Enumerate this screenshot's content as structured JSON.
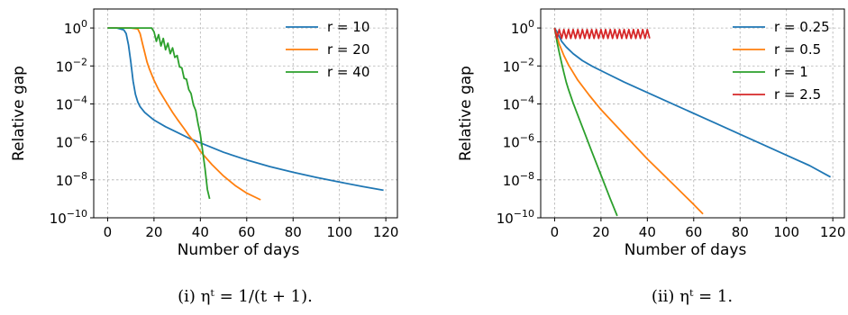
{
  "chart_data": [
    {
      "type": "line",
      "caption": "(i) ηᵗ = 1/(t + 1).",
      "xlabel": "Number of days",
      "ylabel": "Relative gap",
      "yscale": "log",
      "xlim": [
        -6,
        125
      ],
      "ylim_log10": [
        -10,
        1
      ],
      "xticks": [
        0,
        20,
        40,
        60,
        80,
        100,
        120
      ],
      "yticks_log10": [
        0,
        -2,
        -4,
        -6,
        -8,
        -10
      ],
      "xtick_labels": [
        "0",
        "20",
        "40",
        "60",
        "80",
        "100",
        "120"
      ],
      "ytick_bases": [
        "10",
        "10",
        "10",
        "10",
        "10",
        "10"
      ],
      "ytick_exponents": [
        "0",
        "−2",
        "−4",
        "−6",
        "−8",
        "−10"
      ],
      "grid": true,
      "legend_position": "top-right",
      "series": [
        {
          "name": "r = 10",
          "color": "#1f77b4",
          "x": [
            0,
            4,
            7,
            8,
            9,
            10,
            11,
            12,
            13,
            14,
            16,
            18,
            20,
            25,
            30,
            35,
            40,
            50,
            60,
            70,
            80,
            90,
            100,
            110,
            119
          ],
          "y_log10": [
            0,
            0,
            -0.1,
            -0.3,
            -0.9,
            -1.8,
            -2.8,
            -3.5,
            -3.9,
            -4.15,
            -4.45,
            -4.65,
            -4.85,
            -5.2,
            -5.5,
            -5.8,
            -6.05,
            -6.55,
            -6.95,
            -7.3,
            -7.6,
            -7.87,
            -8.12,
            -8.35,
            -8.55
          ]
        },
        {
          "name": "r = 20",
          "color": "#ff7f0e",
          "x": [
            0,
            10,
            13,
            14,
            15,
            16,
            17,
            18,
            20,
            22,
            25,
            28,
            30,
            33,
            35,
            38,
            40,
            45,
            50,
            55,
            60,
            66
          ],
          "y_log10": [
            0,
            0,
            -0.05,
            -0.3,
            -0.8,
            -1.3,
            -1.8,
            -2.15,
            -2.75,
            -3.25,
            -3.85,
            -4.45,
            -4.8,
            -5.3,
            -5.65,
            -6.1,
            -6.5,
            -7.2,
            -7.8,
            -8.3,
            -8.7,
            -9.05
          ]
        },
        {
          "name": "r = 40",
          "color": "#2ca02c",
          "x": [
            0,
            19,
            20,
            21,
            22,
            23,
            24,
            25,
            26,
            27,
            28,
            29,
            30,
            31,
            32,
            33,
            34,
            35,
            36,
            37,
            38,
            39,
            40,
            41,
            42,
            43,
            44
          ],
          "y_log10": [
            0,
            0,
            -0.2,
            -0.7,
            -0.35,
            -0.95,
            -0.55,
            -1.15,
            -0.8,
            -1.35,
            -1.05,
            -1.55,
            -1.45,
            -2.05,
            -2.1,
            -2.65,
            -2.7,
            -3.25,
            -3.45,
            -4.05,
            -4.35,
            -5.05,
            -5.6,
            -6.5,
            -7.4,
            -8.5,
            -9.0
          ]
        }
      ]
    },
    {
      "type": "line",
      "caption": "(ii) ηᵗ = 1.",
      "xlabel": "Number of days",
      "ylabel": "Relative gap",
      "yscale": "log",
      "xlim": [
        -6,
        125
      ],
      "ylim_log10": [
        -10,
        1
      ],
      "xticks": [
        0,
        20,
        40,
        60,
        80,
        100,
        120
      ],
      "yticks_log10": [
        0,
        -2,
        -4,
        -6,
        -8,
        -10
      ],
      "xtick_labels": [
        "0",
        "20",
        "40",
        "60",
        "80",
        "100",
        "120"
      ],
      "ytick_bases": [
        "10",
        "10",
        "10",
        "10",
        "10",
        "10"
      ],
      "ytick_exponents": [
        "0",
        "−2",
        "−4",
        "−6",
        "−8",
        "−10"
      ],
      "grid": true,
      "legend_position": "top-right",
      "series": [
        {
          "name": "r = 0.25",
          "color": "#1f77b4",
          "x": [
            0,
            1,
            2,
            3,
            5,
            8,
            12,
            16,
            20,
            30,
            40,
            50,
            60,
            70,
            80,
            90,
            100,
            110,
            119
          ],
          "y_log10": [
            0,
            -0.2,
            -0.45,
            -0.7,
            -1.0,
            -1.35,
            -1.72,
            -2.0,
            -2.25,
            -2.85,
            -3.4,
            -3.95,
            -4.5,
            -5.05,
            -5.6,
            -6.15,
            -6.7,
            -7.25,
            -7.85
          ]
        },
        {
          "name": "r = 0.5",
          "color": "#ff7f0e",
          "x": [
            0,
            1,
            2,
            4,
            6,
            10,
            15,
            20,
            30,
            40,
            50,
            60,
            64
          ],
          "y_log10": [
            0,
            -0.4,
            -0.85,
            -1.45,
            -1.95,
            -2.75,
            -3.55,
            -4.3,
            -5.6,
            -6.9,
            -8.1,
            -9.3,
            -9.8
          ]
        },
        {
          "name": "r = 1",
          "color": "#2ca02c",
          "x": [
            0,
            1,
            2,
            3,
            4,
            5,
            6,
            8,
            10,
            13,
            16,
            20,
            24,
            27
          ],
          "y_log10": [
            0,
            -0.7,
            -1.3,
            -1.85,
            -2.35,
            -2.85,
            -3.25,
            -3.95,
            -4.6,
            -5.55,
            -6.5,
            -7.75,
            -9.0,
            -9.9
          ]
        },
        {
          "name": "r = 2.5",
          "color": "#d62728",
          "x": [
            0,
            1,
            2,
            3,
            4,
            5,
            6,
            7,
            8,
            9,
            10,
            11,
            12,
            13,
            14,
            15,
            16,
            17,
            18,
            19,
            20,
            21,
            22,
            23,
            24,
            25,
            26,
            27,
            28,
            29,
            30,
            31,
            32,
            33,
            34,
            35,
            36,
            37,
            38,
            39,
            40,
            41
          ],
          "y_log10": [
            0,
            -0.55,
            -0.08,
            -0.55,
            -0.08,
            -0.55,
            -0.08,
            -0.55,
            -0.08,
            -0.55,
            -0.08,
            -0.55,
            -0.08,
            -0.55,
            -0.08,
            -0.55,
            -0.08,
            -0.55,
            -0.08,
            -0.55,
            -0.08,
            -0.55,
            -0.08,
            -0.55,
            -0.08,
            -0.55,
            -0.08,
            -0.55,
            -0.08,
            -0.55,
            -0.08,
            -0.55,
            -0.08,
            -0.55,
            -0.08,
            -0.55,
            -0.08,
            -0.55,
            -0.08,
            -0.55,
            -0.08,
            -0.55
          ]
        }
      ]
    }
  ]
}
